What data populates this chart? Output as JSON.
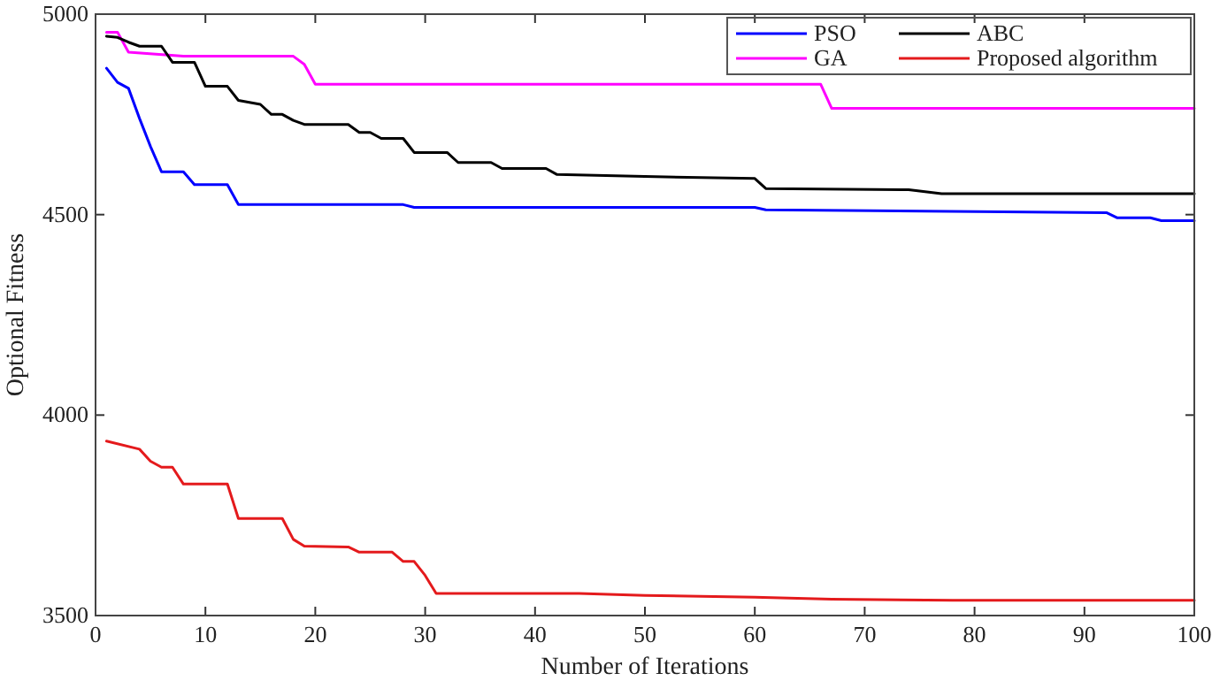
{
  "chart_data": {
    "type": "line",
    "xlabel": "Number of Iterations",
    "ylabel": "Optional Fitness",
    "xlim": [
      0,
      100
    ],
    "ylim": [
      3500,
      5000
    ],
    "xticks": [
      0,
      10,
      20,
      30,
      40,
      50,
      60,
      70,
      80,
      90,
      100
    ],
    "yticks": [
      3500,
      4000,
      4500,
      5000
    ],
    "grid": false,
    "legend": "top right",
    "marker": "none",
    "line_style": "solid",
    "series": [
      {
        "name": "PSO",
        "color": "#0000ff",
        "x": [
          1,
          2,
          3,
          4,
          5,
          6,
          8,
          9,
          12,
          13,
          28,
          29,
          60,
          61,
          92,
          93,
          96,
          97,
          100
        ],
        "values": [
          4865,
          4830,
          4815,
          4740,
          4670,
          4607,
          4607,
          4575,
          4575,
          4525,
          4525,
          4518,
          4518,
          4512,
          4505,
          4492,
          4492,
          4485,
          4485
        ]
      },
      {
        "name": "GA",
        "color": "#ff00ff",
        "x": [
          1,
          2,
          3,
          8,
          18,
          19,
          20,
          66,
          67,
          100
        ],
        "values": [
          4955,
          4955,
          4905,
          4895,
          4895,
          4875,
          4825,
          4825,
          4765,
          4765
        ]
      },
      {
        "name": "ABC",
        "color": "#000000",
        "x": [
          1,
          2,
          3,
          4,
          6,
          7,
          9,
          10,
          12,
          13,
          14,
          15,
          16,
          17,
          18,
          19,
          23,
          24,
          25,
          26,
          28,
          29,
          32,
          33,
          36,
          37,
          41,
          42,
          50,
          60,
          61,
          74,
          77,
          100
        ],
        "values": [
          4945,
          4942,
          4930,
          4920,
          4920,
          4880,
          4880,
          4820,
          4820,
          4785,
          4780,
          4775,
          4750,
          4750,
          4735,
          4725,
          4725,
          4705,
          4705,
          4690,
          4690,
          4655,
          4655,
          4630,
          4630,
          4615,
          4615,
          4600,
          4595,
          4590,
          4565,
          4562,
          4552,
          4552
        ]
      },
      {
        "name": "Proposed algorithm",
        "color": "#e41a1c",
        "x": [
          1,
          4,
          5,
          6,
          7,
          8,
          12,
          13,
          17,
          18,
          19,
          23,
          24,
          27,
          28,
          29,
          30,
          31,
          44,
          50,
          60,
          67,
          78,
          100
        ],
        "values": [
          3935,
          3915,
          3885,
          3870,
          3870,
          3828,
          3828,
          3742,
          3742,
          3690,
          3673,
          3671,
          3658,
          3658,
          3635,
          3635,
          3600,
          3555,
          3555,
          3550,
          3546,
          3541,
          3538,
          3538
        ]
      }
    ]
  }
}
